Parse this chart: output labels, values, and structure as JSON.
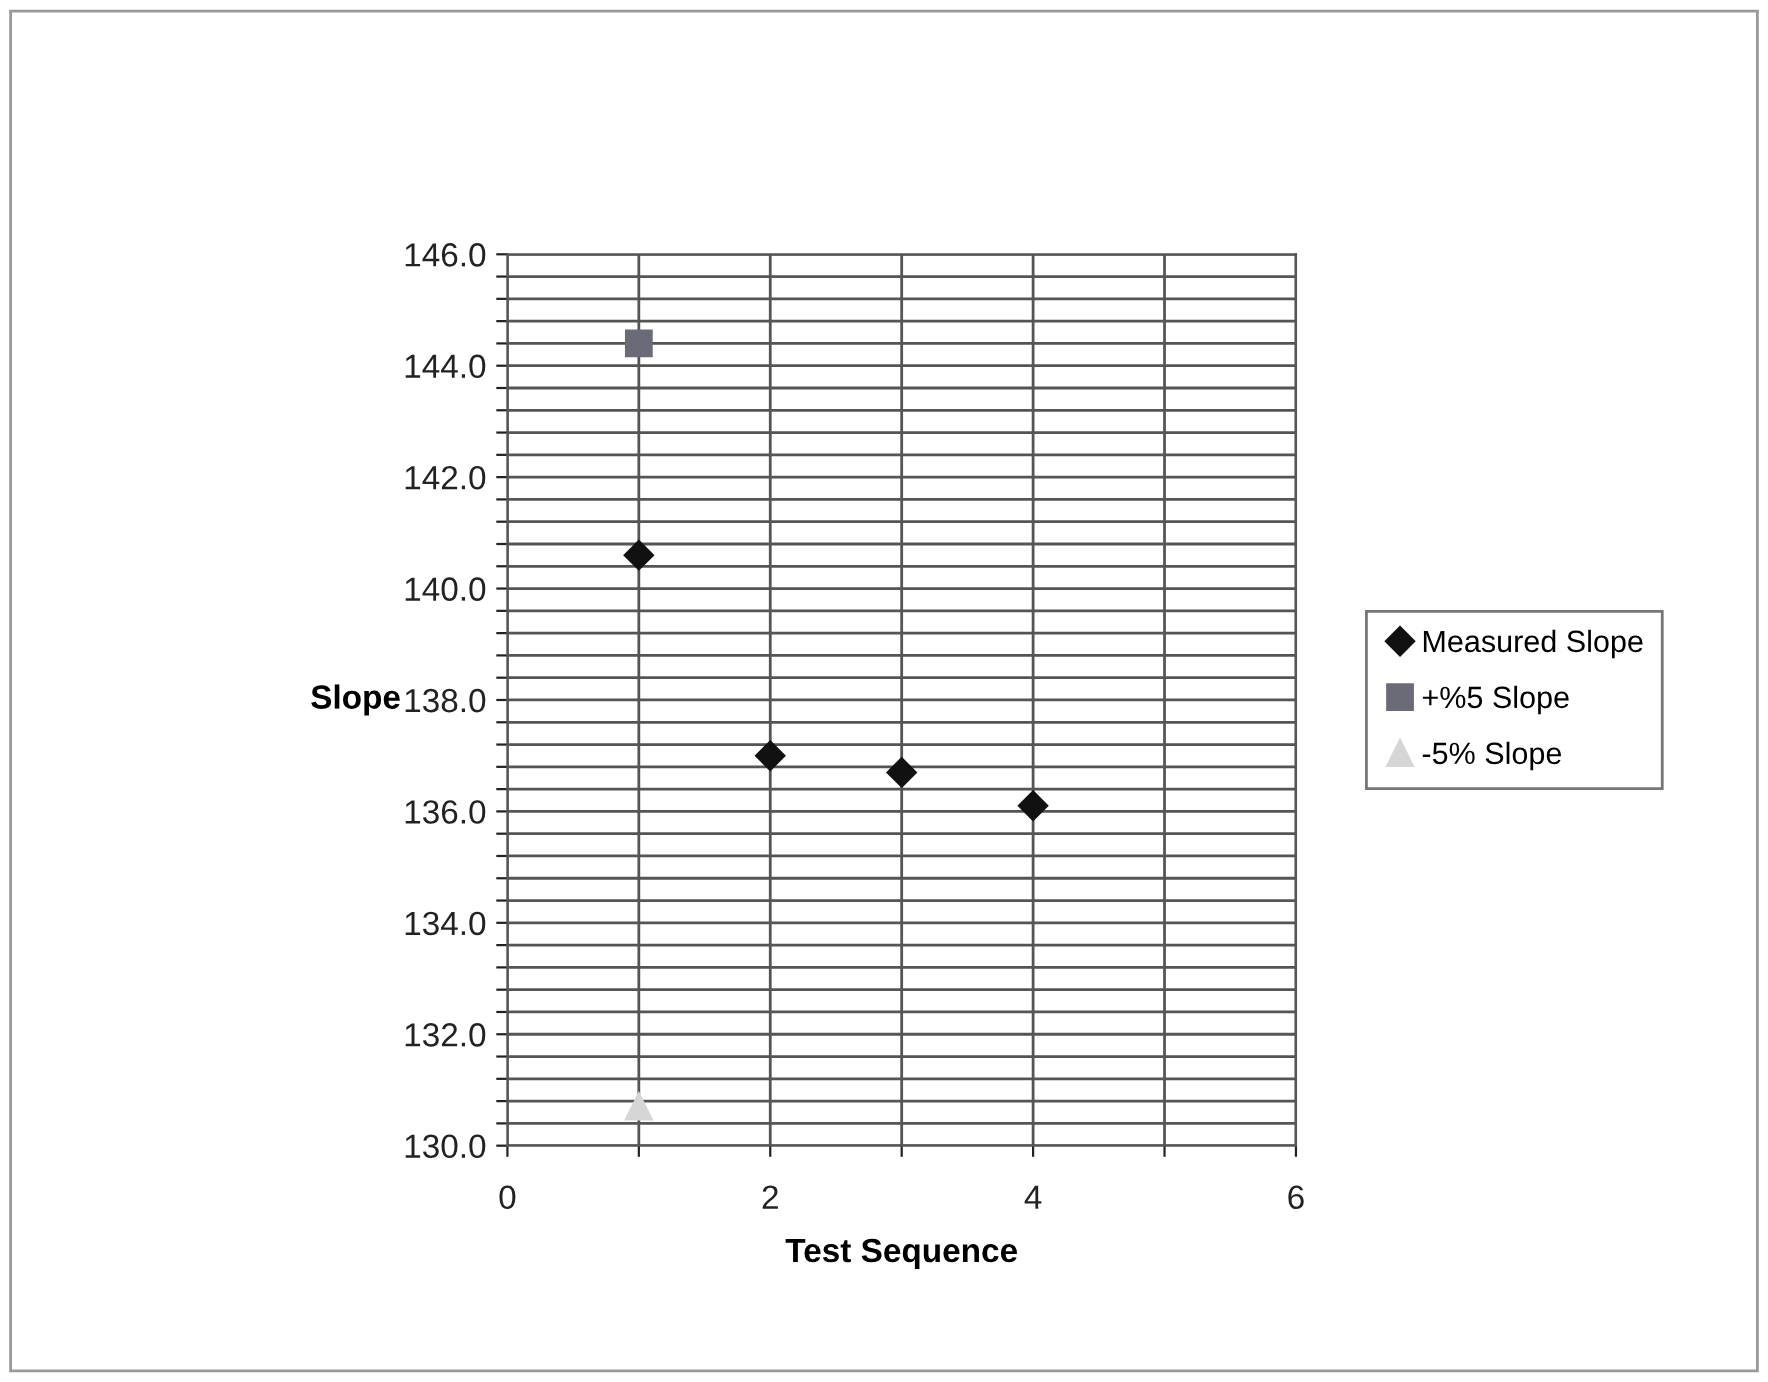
{
  "chart_data": {
    "type": "scatter",
    "xlabel": "Test Sequence",
    "ylabel": "Slope",
    "series": [
      {
        "name": "Measured Slope",
        "color": "#111111",
        "marker": "diamond",
        "x": [
          1,
          2,
          3,
          4
        ],
        "values": [
          140.6,
          137.0,
          136.7,
          136.1
        ]
      },
      {
        "name": "+%5 Slope",
        "color": "#6b6b78",
        "marker": "square",
        "x": [
          1
        ],
        "values": [
          144.4
        ]
      },
      {
        "name": "-5% Slope",
        "color": "#d6d6d6",
        "marker": "triangle",
        "x": [
          1
        ],
        "values": [
          130.7
        ]
      }
    ],
    "xlim": [
      0,
      6
    ],
    "xticks": [
      0,
      {
        "value": 1,
        "label": null
      },
      2,
      {
        "value": 3,
        "label": null
      },
      4,
      {
        "value": 5,
        "label": null
      },
      6
    ],
    "ylim": [
      130,
      146
    ],
    "yticks": [
      {
        "value": 130,
        "label": "130.0"
      },
      {
        "value": 130.4,
        "label": null
      },
      {
        "value": 130.8,
        "label": null
      },
      {
        "value": 131.2,
        "label": null
      },
      {
        "value": 131.6,
        "label": null
      },
      {
        "value": 132,
        "label": "132.0"
      },
      {
        "value": 132.4,
        "label": null
      },
      {
        "value": 132.8,
        "label": null
      },
      {
        "value": 133.2,
        "label": null
      },
      {
        "value": 133.6,
        "label": null
      },
      {
        "value": 134,
        "label": "134.0"
      },
      {
        "value": 134.4,
        "label": null
      },
      {
        "value": 134.8,
        "label": null
      },
      {
        "value": 135.2,
        "label": null
      },
      {
        "value": 135.6,
        "label": null
      },
      {
        "value": 136,
        "label": "136.0"
      },
      {
        "value": 136.4,
        "label": null
      },
      {
        "value": 136.8,
        "label": null
      },
      {
        "value": 137.2,
        "label": null
      },
      {
        "value": 137.6,
        "label": null
      },
      {
        "value": 138,
        "label": "138.0"
      },
      {
        "value": 138.4,
        "label": null
      },
      {
        "value": 138.8,
        "label": null
      },
      {
        "value": 139.2,
        "label": null
      },
      {
        "value": 139.6,
        "label": null
      },
      {
        "value": 140,
        "label": "140.0"
      },
      {
        "value": 140.4,
        "label": null
      },
      {
        "value": 140.8,
        "label": null
      },
      {
        "value": 141.2,
        "label": null
      },
      {
        "value": 141.6,
        "label": null
      },
      {
        "value": 142,
        "label": "142.0"
      },
      {
        "value": 142.4,
        "label": null
      },
      {
        "value": 142.8,
        "label": null
      },
      {
        "value": 143.2,
        "label": null
      },
      {
        "value": 143.6,
        "label": null
      },
      {
        "value": 144,
        "label": "144.0"
      },
      {
        "value": 144.4,
        "label": null
      },
      {
        "value": 144.8,
        "label": null
      },
      {
        "value": 145.2,
        "label": null
      },
      {
        "value": 145.6,
        "label": null
      },
      {
        "value": 146,
        "label": "146.0"
      }
    ],
    "grid": true,
    "legend": "right"
  }
}
